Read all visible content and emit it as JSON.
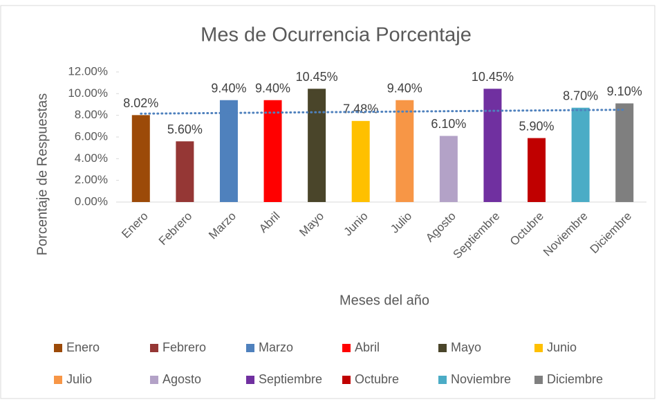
{
  "chart_data": {
    "type": "bar",
    "title": "Mes de Ocurrencia Porcentaje",
    "x_label": "Meses del año",
    "y_label": "Porcentaje de Respuestas",
    "categories": [
      "Enero",
      "Febrero",
      "Marzo",
      "Abril",
      "Mayo",
      "Junio",
      "Julio",
      "Agosto",
      "Septiembre",
      "Octubre",
      "Noviembre",
      "Diciembre"
    ],
    "values": [
      8.02,
      5.6,
      9.4,
      9.4,
      10.45,
      7.48,
      9.4,
      6.1,
      10.45,
      5.9,
      8.7,
      9.1
    ],
    "value_labels": [
      "8.02%",
      "5.60%",
      "9.40%",
      "9.40%",
      "10.45%",
      "7.48%",
      "9.40%",
      "6.10%",
      "10.45%",
      "5.90%",
      "8.70%",
      "9.10%"
    ],
    "colors": [
      "#9c4a08",
      "#953735",
      "#4f81bd",
      "#ff0000",
      "#4a452a",
      "#ffc000",
      "#f79646",
      "#b3a2c7",
      "#7030a0",
      "#c00000",
      "#4bacc6",
      "#7f7f7f"
    ],
    "ylim": [
      0,
      12
    ],
    "yticks": [
      {
        "value": 0,
        "label": "0.00%"
      },
      {
        "value": 2,
        "label": "2.00%"
      },
      {
        "value": 4,
        "label": "4.00%"
      },
      {
        "value": 6,
        "label": "6.00%"
      },
      {
        "value": 8,
        "label": "8.00%"
      },
      {
        "value": 10,
        "label": "10.00%"
      },
      {
        "value": 12,
        "label": "12.00%"
      }
    ],
    "trendline": {
      "type": "linear",
      "color": "#4f81bd",
      "style": "dotted"
    },
    "legend": "bottom"
  }
}
